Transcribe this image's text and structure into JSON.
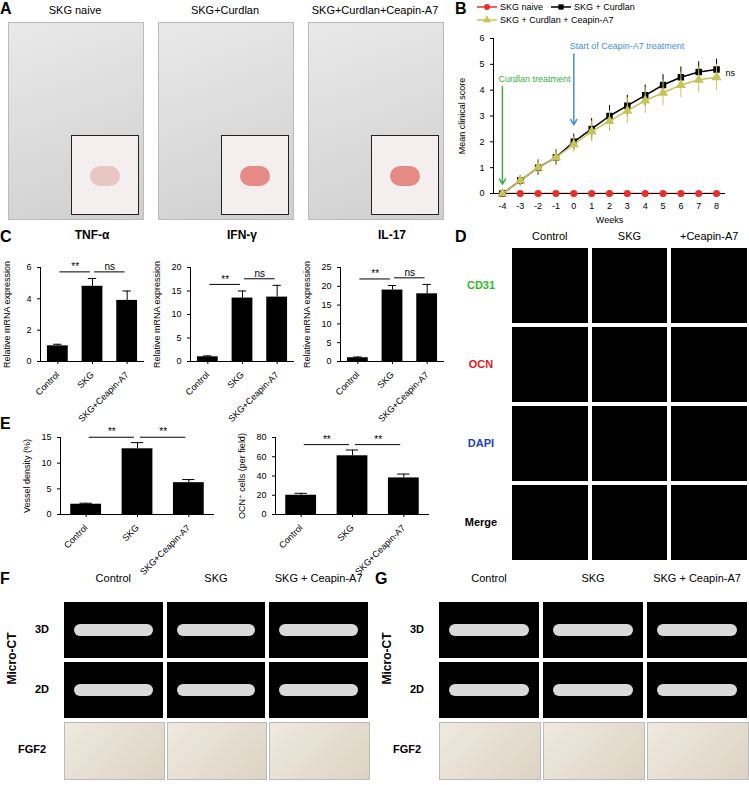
{
  "panels": [
    {
      "letter": "A",
      "type": "photos",
      "labels": [
        "SKG naive",
        "SKG+Curdlan",
        "SKG+Curdlan+Ceapin-A7"
      ]
    },
    {
      "letter": "D",
      "type": "fluorescence",
      "columns": [
        "Control",
        "SKG",
        "+Ceapin-A7"
      ],
      "rows": [
        {
          "label": "CD31",
          "color": "#2fb82f"
        },
        {
          "label": "OCN",
          "color": "#e02020"
        },
        {
          "label": "DAPI",
          "color": "#2040c0"
        },
        {
          "label": "Merge",
          "color": "#000000"
        }
      ]
    },
    {
      "letter": "F",
      "type": "micro_ct",
      "side_label": "Micro-CT",
      "columns": [
        "Control",
        "SKG",
        "SKG + Ceapin-A7"
      ],
      "rows": [
        "3D",
        "2D",
        "FGF2"
      ]
    },
    {
      "letter": "G",
      "type": "micro_ct",
      "side_label": "Micro-CT",
      "columns": [
        "Control",
        "SKG",
        "SKG + Ceapin-A7"
      ],
      "rows": [
        "3D",
        "2D",
        "FGF2"
      ]
    }
  ],
  "chart_data": [
    {
      "letter": "B",
      "type": "line",
      "xlabel": "Weeks",
      "ylabel": "Mean clinical score",
      "x": [
        -4,
        -3,
        -2,
        -1,
        0,
        1,
        2,
        3,
        4,
        5,
        6,
        7,
        8
      ],
      "xlim": [
        -4.5,
        8.5
      ],
      "xticks": [
        -4,
        -3,
        -2,
        -1,
        0,
        1,
        2,
        3,
        4,
        5,
        6,
        7,
        8
      ],
      "ylim": [
        0,
        6
      ],
      "yticks": [
        0,
        1,
        2,
        3,
        4,
        5,
        6
      ],
      "legend": "top",
      "series": [
        {
          "name": "SKG naive",
          "color": "#e8302a",
          "marker": "circle",
          "values": [
            0,
            0,
            0,
            0,
            0,
            0,
            0,
            0,
            0,
            0,
            0,
            0,
            0
          ],
          "errors": [
            0,
            0,
            0,
            0,
            0,
            0,
            0,
            0,
            0,
            0,
            0,
            0,
            0
          ]
        },
        {
          "name": "SKG + Curdlan",
          "color": "#000000",
          "marker": "square",
          "values": [
            0,
            0.5,
            1.0,
            1.4,
            2.0,
            2.5,
            3.0,
            3.4,
            3.8,
            4.2,
            4.5,
            4.7,
            4.8
          ],
          "errors": [
            0,
            0.2,
            0.3,
            0.3,
            0.3,
            0.4,
            0.4,
            0.4,
            0.4,
            0.4,
            0.4,
            0.4,
            0.4
          ]
        },
        {
          "name": "SKG + Curdlan + Ceapin-A7",
          "color": "#c8c45a",
          "marker": "triangle",
          "values": [
            0,
            0.5,
            1.0,
            1.4,
            1.9,
            2.4,
            2.8,
            3.2,
            3.6,
            3.9,
            4.2,
            4.4,
            4.5
          ],
          "errors": [
            0,
            0.2,
            0.3,
            0.3,
            0.3,
            0.4,
            0.4,
            0.5,
            0.5,
            0.5,
            0.5,
            0.5,
            0.5
          ]
        }
      ],
      "annotations": [
        {
          "text": "Curdlan treatment",
          "x": -4,
          "color": "#3cb043"
        },
        {
          "text": "Start of Ceapin-A7 treatment",
          "x": 0,
          "color": "#4a8fe0"
        }
      ],
      "significance": "ns"
    },
    {
      "letter": "C",
      "type": "bar",
      "title": "TNF-α",
      "ylabel": "Relative mRNA expression",
      "categories": [
        "Control",
        "SKG",
        "SKG+Ceapin-A7"
      ],
      "values": [
        1.0,
        4.8,
        3.9
      ],
      "errors": [
        0.1,
        0.5,
        0.6
      ],
      "color": "#000000",
      "ylim": [
        0,
        6
      ],
      "yticks": [
        0,
        2,
        4,
        6
      ],
      "comparisons": [
        {
          "from": "Control",
          "to": "SKG",
          "label": "**"
        },
        {
          "from": "SKG",
          "to": "SKG+Ceapin-A7",
          "label": "ns"
        }
      ]
    },
    {
      "letter": "C",
      "type": "bar",
      "title": "IFN-γ",
      "ylabel": "Relative mRNA expression",
      "categories": [
        "Control",
        "SKG",
        "SKG+Ceapin-A7"
      ],
      "values": [
        1.0,
        13.5,
        13.7
      ],
      "errors": [
        0.2,
        1.5,
        2.5
      ],
      "color": "#000000",
      "ylim": [
        0,
        20
      ],
      "yticks": [
        0,
        5,
        10,
        15,
        20
      ],
      "comparisons": [
        {
          "from": "Control",
          "to": "SKG",
          "label": "**"
        },
        {
          "from": "SKG",
          "to": "SKG+Ceapin-A7",
          "label": "ns"
        }
      ]
    },
    {
      "letter": "C",
      "type": "bar",
      "title": "IL-17",
      "ylabel": "Relative mRNA expression",
      "categories": [
        "Control",
        "SKG",
        "SKG+Ceapin-A7"
      ],
      "values": [
        1.0,
        19.0,
        18.0
      ],
      "errors": [
        0.2,
        1.2,
        2.5
      ],
      "color": "#000000",
      "ylim": [
        0,
        25
      ],
      "yticks": [
        0,
        5,
        10,
        15,
        20,
        25
      ],
      "comparisons": [
        {
          "from": "Control",
          "to": "SKG",
          "label": "**"
        },
        {
          "from": "SKG",
          "to": "SKG+Ceapin-A7",
          "label": "ns"
        }
      ]
    },
    {
      "letter": "E",
      "type": "bar",
      "ylabel": "Vessel density (%)",
      "categories": [
        "Control",
        "SKG",
        "SKG+Ceapin-A7"
      ],
      "values": [
        2.0,
        12.8,
        6.2
      ],
      "errors": [
        0.2,
        1.2,
        0.6
      ],
      "color": "#000000",
      "ylim": [
        0,
        15
      ],
      "yticks": [
        0,
        5,
        10,
        15
      ],
      "comparisons": [
        {
          "from": "Control",
          "to": "SKG",
          "label": "**"
        },
        {
          "from": "SKG",
          "to": "SKG+Ceapin-A7",
          "label": "**"
        }
      ]
    },
    {
      "letter": "E",
      "type": "bar",
      "ylabel": "OCN⁺ cells (per field)",
      "categories": [
        "Control",
        "SKG",
        "SKG+Ceapin-A7"
      ],
      "values": [
        20,
        61,
        38
      ],
      "errors": [
        2,
        6,
        4
      ],
      "color": "#000000",
      "ylim": [
        0,
        80
      ],
      "yticks": [
        0,
        20,
        40,
        60,
        80
      ],
      "comparisons": [
        {
          "from": "Control",
          "to": "SKG",
          "label": "**"
        },
        {
          "from": "SKG",
          "to": "SKG+Ceapin-A7",
          "label": "**"
        }
      ]
    }
  ]
}
